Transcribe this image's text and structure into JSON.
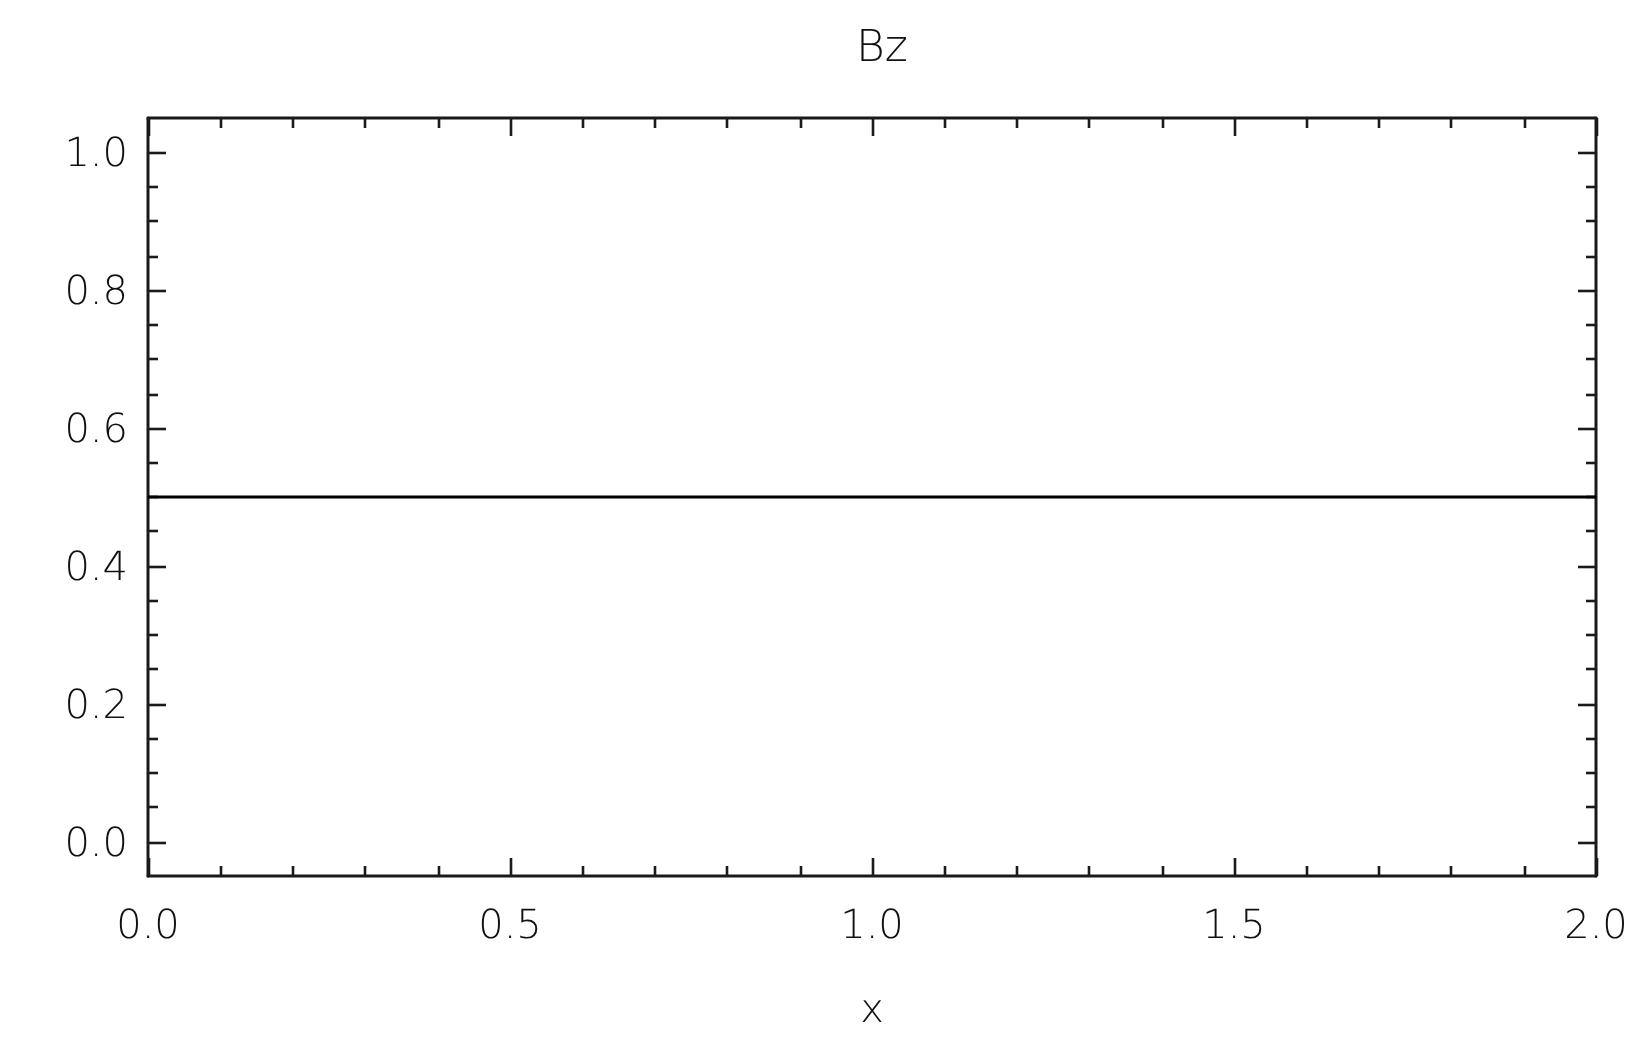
{
  "chart_data": {
    "type": "line",
    "title": "Bz",
    "xlabel": "x",
    "x": [
      0,
      2
    ],
    "series": [
      {
        "color": "#000000",
        "values": [
          0.5,
          0.5
        ]
      }
    ],
    "marker": "none",
    "line_style": "solid",
    "grid": false,
    "xlim": [
      0,
      2
    ],
    "xticks": [
      {
        "value": 0,
        "label": "0.0"
      },
      {
        "value": 0.1,
        "label": null
      },
      {
        "value": 0.2,
        "label": null
      },
      {
        "value": 0.3,
        "label": null
      },
      {
        "value": 0.4,
        "label": null
      },
      {
        "value": 0.5,
        "label": "0.5"
      },
      {
        "value": 0.6,
        "label": null
      },
      {
        "value": 0.7,
        "label": null
      },
      {
        "value": 0.8,
        "label": null
      },
      {
        "value": 0.9,
        "label": null
      },
      {
        "value": 1,
        "label": "1.0"
      },
      {
        "value": 1.1,
        "label": null
      },
      {
        "value": 1.2,
        "label": null
      },
      {
        "value": 1.3,
        "label": null
      },
      {
        "value": 1.4,
        "label": null
      },
      {
        "value": 1.5,
        "label": "1.5"
      },
      {
        "value": 1.6,
        "label": null
      },
      {
        "value": 1.7,
        "label": null
      },
      {
        "value": 1.8,
        "label": null
      },
      {
        "value": 1.9,
        "label": null
      },
      {
        "value": 2,
        "label": "2.0"
      }
    ],
    "ylim": [
      -0.05,
      1.05
    ],
    "yticks": [
      {
        "value": 0,
        "label": "0.0"
      },
      {
        "value": 0.05,
        "label": null
      },
      {
        "value": 0.1,
        "label": null
      },
      {
        "value": 0.15,
        "label": null
      },
      {
        "value": 0.2,
        "label": "0.2"
      },
      {
        "value": 0.25,
        "label": null
      },
      {
        "value": 0.3,
        "label": null
      },
      {
        "value": 0.35,
        "label": null
      },
      {
        "value": 0.4,
        "label": "0.4"
      },
      {
        "value": 0.45,
        "label": null
      },
      {
        "value": 0.5,
        "label": null
      },
      {
        "value": 0.55,
        "label": null
      },
      {
        "value": 0.6,
        "label": "0.6"
      },
      {
        "value": 0.65,
        "label": null
      },
      {
        "value": 0.7,
        "label": null
      },
      {
        "value": 0.75,
        "label": null
      },
      {
        "value": 0.8,
        "label": "0.8"
      },
      {
        "value": 0.85,
        "label": null
      },
      {
        "value": 0.9,
        "label": null
      },
      {
        "value": 0.95,
        "label": null
      },
      {
        "value": 1,
        "label": "1.0"
      }
    ]
  }
}
